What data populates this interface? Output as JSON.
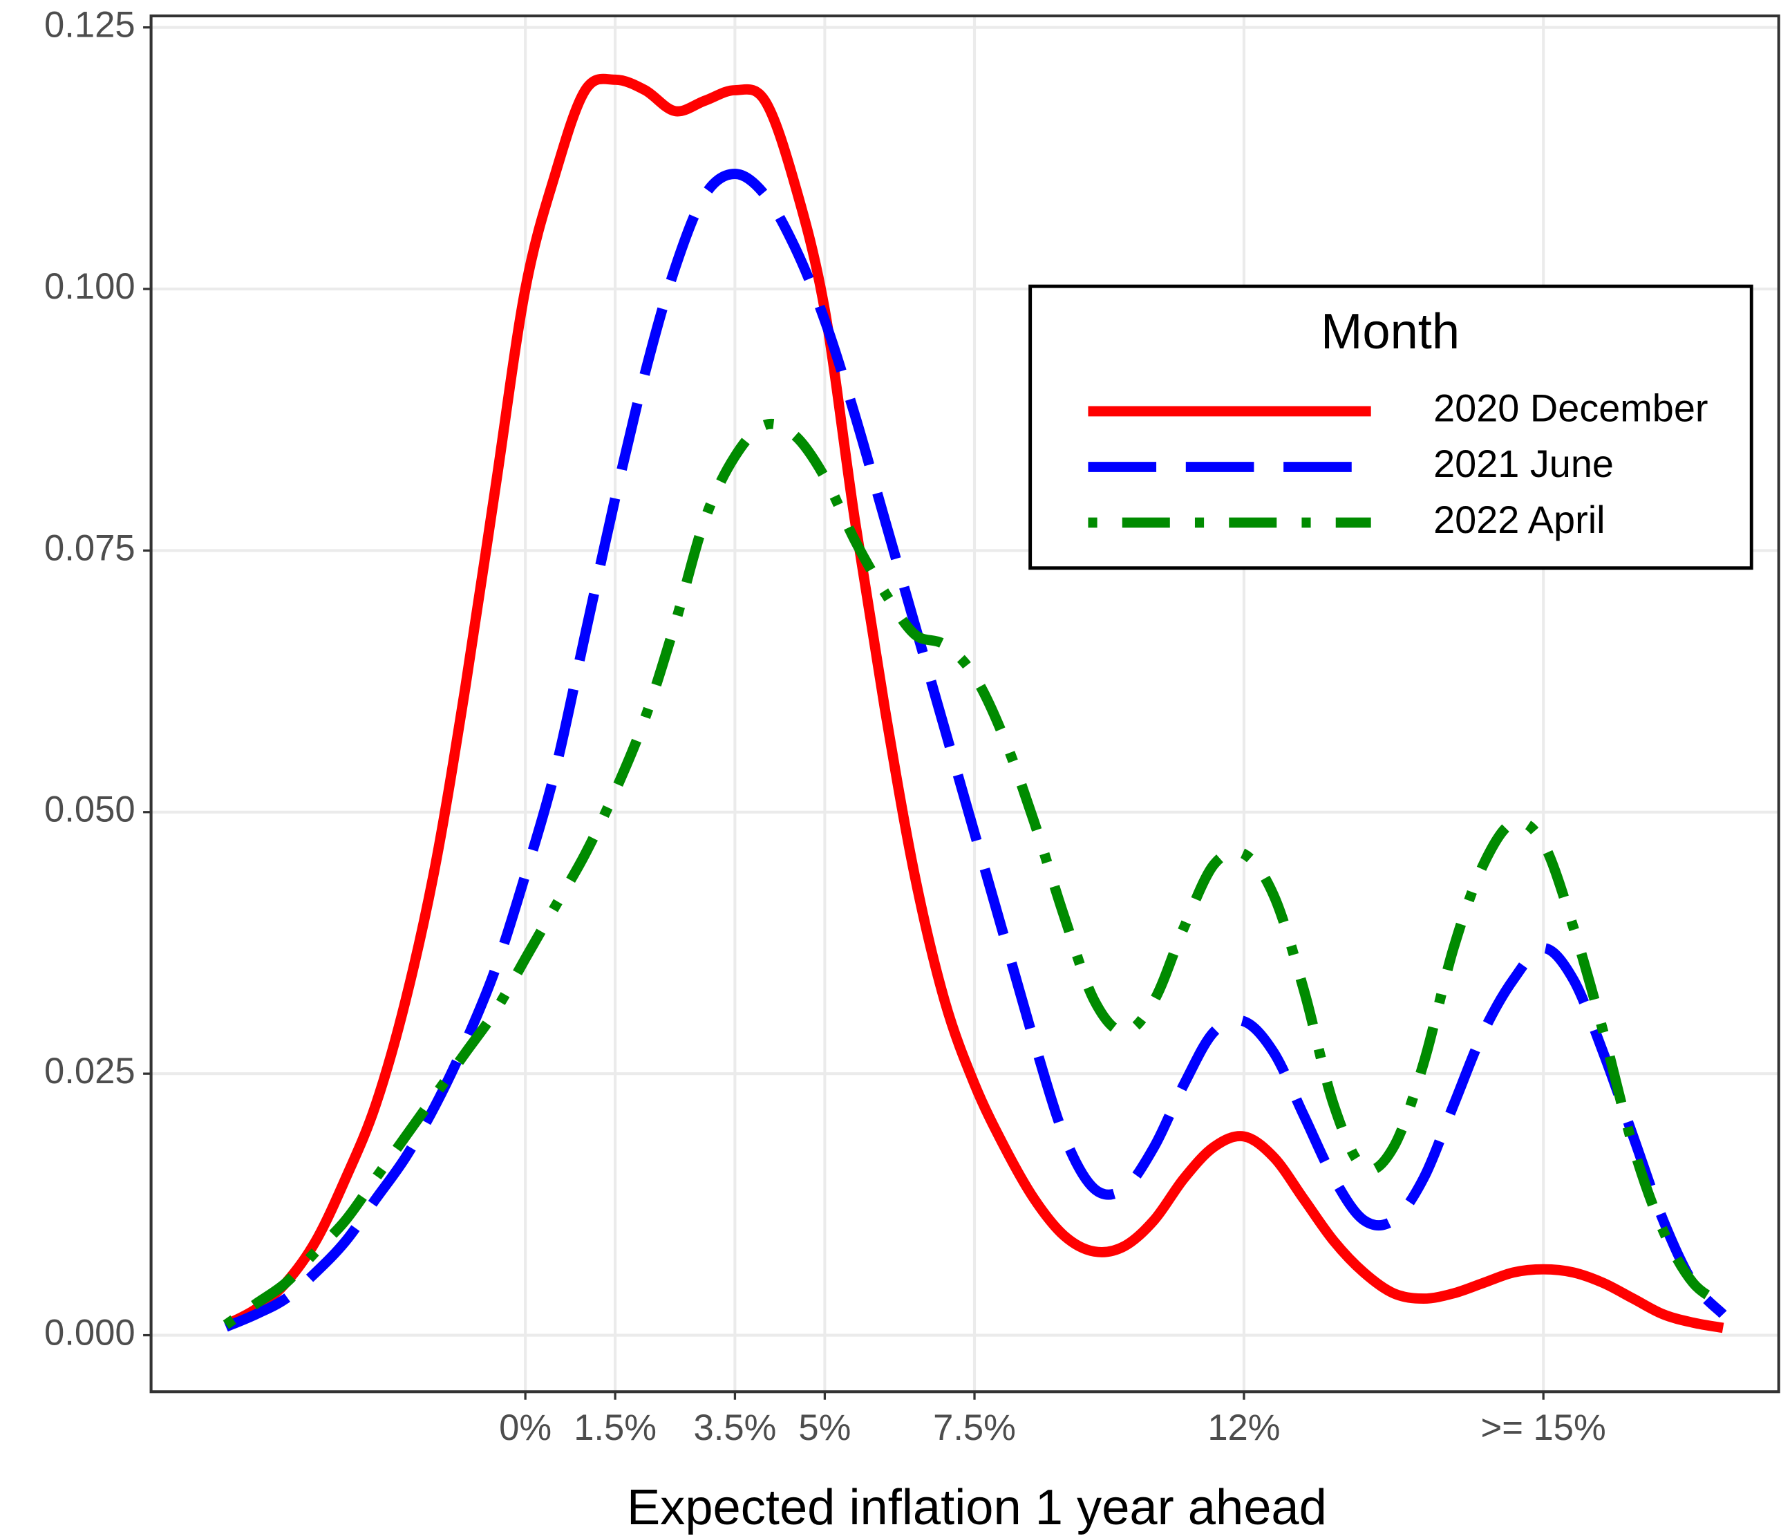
{
  "chart_data": {
    "type": "line",
    "x_label": "Expected inflation 1 year ahead",
    "x": [
      -5,
      -4.5,
      -4,
      -3.5,
      -3,
      -2.5,
      -2,
      -1.5,
      -1,
      -0.5,
      0,
      0.5,
      1,
      1.5,
      2,
      2.5,
      3,
      3.5,
      4,
      4.5,
      5,
      5.5,
      6,
      6.5,
      7,
      7.5,
      8,
      8.5,
      9,
      9.5,
      10,
      10.5,
      11,
      11.5,
      12,
      12.5,
      13,
      13.5,
      14,
      14.5,
      15,
      15.5,
      16,
      16.5,
      17,
      17.5,
      18,
      18.5,
      19,
      19.5,
      20
    ],
    "series": [
      {
        "name": "2020 December",
        "color": "#ff0000",
        "linestyle": "solid",
        "values": [
          0.001,
          0.0025,
          0.005,
          0.009,
          0.015,
          0.022,
          0.032,
          0.045,
          0.062,
          0.081,
          0.1,
          0.111,
          0.119,
          0.12,
          0.119,
          0.117,
          0.118,
          0.119,
          0.118,
          0.11,
          0.098,
          0.078,
          0.06,
          0.044,
          0.032,
          0.024,
          0.018,
          0.013,
          0.0095,
          0.008,
          0.0085,
          0.011,
          0.015,
          0.018,
          0.019,
          0.017,
          0.013,
          0.009,
          0.006,
          0.004,
          0.0035,
          0.004,
          0.005,
          0.006,
          0.0063,
          0.006,
          0.005,
          0.0035,
          0.002,
          0.0012,
          0.0007
        ]
      },
      {
        "name": "2021 June",
        "color": "#0000ff",
        "linestyle": "dashed",
        "values": [
          0.0008,
          0.002,
          0.0035,
          0.006,
          0.009,
          0.013,
          0.017,
          0.022,
          0.028,
          0.035,
          0.044,
          0.054,
          0.067,
          0.08,
          0.092,
          0.102,
          0.109,
          0.111,
          0.109,
          0.104,
          0.097,
          0.088,
          0.078,
          0.068,
          0.058,
          0.048,
          0.038,
          0.028,
          0.019,
          0.014,
          0.014,
          0.018,
          0.024,
          0.029,
          0.03,
          0.027,
          0.021,
          0.015,
          0.011,
          0.011,
          0.015,
          0.022,
          0.029,
          0.034,
          0.037,
          0.034,
          0.027,
          0.019,
          0.011,
          0.005,
          0.002
        ]
      },
      {
        "name": "2022 April",
        "color": "#008b00",
        "linestyle": "dotdash",
        "values": [
          0.001,
          0.003,
          0.005,
          0.008,
          0.011,
          0.015,
          0.019,
          0.023,
          0.027,
          0.031,
          0.036,
          0.041,
          0.046,
          0.052,
          0.059,
          0.068,
          0.078,
          0.084,
          0.087,
          0.086,
          0.082,
          0.076,
          0.071,
          0.067,
          0.066,
          0.063,
          0.057,
          0.049,
          0.04,
          0.032,
          0.029,
          0.032,
          0.039,
          0.045,
          0.046,
          0.042,
          0.033,
          0.022,
          0.016,
          0.018,
          0.026,
          0.037,
          0.045,
          0.049,
          0.047,
          0.039,
          0.029,
          0.018,
          0.01,
          0.005,
          0.003
        ]
      }
    ],
    "xlim": [
      -6.25,
      20.93
    ],
    "ylim": [
      -0.0054,
      0.1261
    ],
    "xticks": [
      {
        "value": 0,
        "label": "0%"
      },
      {
        "value": 1.5,
        "label": "1.5%"
      },
      {
        "value": 3.5,
        "label": "3.5%"
      },
      {
        "value": 5,
        "label": "5%"
      },
      {
        "value": 7.5,
        "label": "7.5%"
      },
      {
        "value": 12,
        "label": "12%"
      },
      {
        "value": 17,
        "label": ">= 15%"
      }
    ],
    "yticks": [
      {
        "value": 0,
        "label": "0.000"
      },
      {
        "value": 0.025,
        "label": "0.025"
      },
      {
        "value": 0.05,
        "label": "0.050"
      },
      {
        "value": 0.075,
        "label": "0.075"
      },
      {
        "value": 0.1,
        "label": "0.100"
      },
      {
        "value": 0.125,
        "label": "0.125"
      }
    ],
    "grid": true,
    "legend_title": "Month",
    "legend": "top right"
  }
}
